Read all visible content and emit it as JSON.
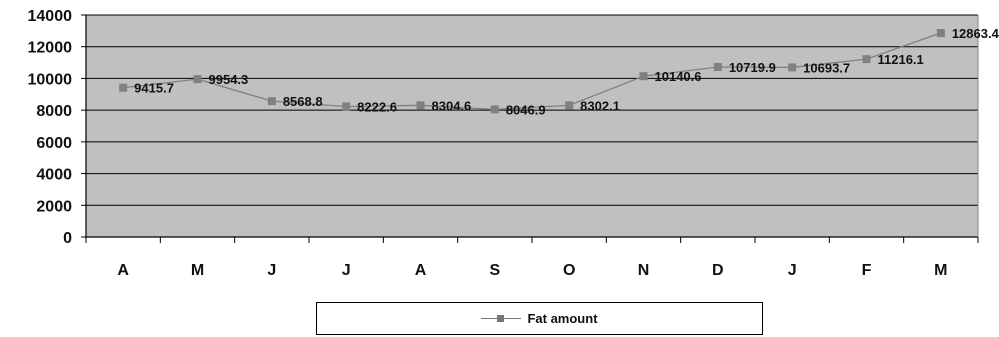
{
  "chart_data": {
    "type": "line",
    "categories": [
      "A",
      "M",
      "J",
      "J",
      "A",
      "S",
      "O",
      "N",
      "D",
      "J",
      "F",
      "M"
    ],
    "series": [
      {
        "name": "Fat amount",
        "values": [
          9415.7,
          9954.3,
          8568.8,
          8222.6,
          8304.6,
          8046.9,
          8302.1,
          10140.6,
          10719.9,
          10693.7,
          11216.1,
          12863.4
        ],
        "labels": [
          "9415.7",
          "9954.3",
          "8568.8",
          "8222.6",
          "8304.6",
          "8046.9",
          "8302.1",
          "10140.6",
          "10719.9",
          "10693.7",
          "11216.1",
          "12863.4"
        ]
      }
    ],
    "yticks": [
      "0",
      "2000",
      "4000",
      "6000",
      "8000",
      "10000",
      "12000",
      "14000"
    ],
    "ylim": [
      0,
      14000
    ],
    "grid": true,
    "legend_position": "bottom",
    "colors": {
      "plot_background": "#c0c0c0",
      "series": "#808080",
      "gridline": "#000000"
    }
  }
}
